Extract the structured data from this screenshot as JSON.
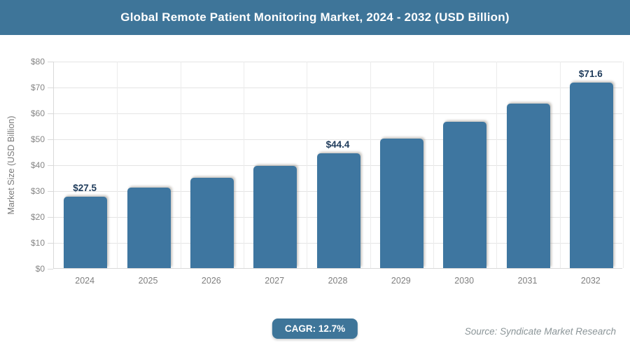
{
  "header": {
    "title": "Global Remote Patient Monitoring Market, 2024 - 2032 (USD Billion)"
  },
  "chart_data": {
    "type": "bar",
    "title": "Global Remote Patient Monitoring Market, 2024 - 2032 (USD Billion)",
    "categories": [
      "2024",
      "2025",
      "2026",
      "2027",
      "2028",
      "2029",
      "2030",
      "2031",
      "2032"
    ],
    "values": [
      27.5,
      31.0,
      34.9,
      39.4,
      44.4,
      50.0,
      56.4,
      63.5,
      71.6
    ],
    "bar_labels": [
      "$27.5",
      "",
      "",
      "",
      "$44.4",
      "",
      "",
      "",
      "$71.6"
    ],
    "xlabel": "",
    "ylabel": "Market Size (USD Billion)",
    "ylim": [
      0,
      80
    ],
    "ytick_step": 10,
    "ytick_labels": [
      "$0",
      "$10",
      "$20",
      "$30",
      "$40",
      "$50",
      "$60",
      "$70",
      "$80"
    ],
    "grid": true,
    "legend_position": "none",
    "colors": {
      "bar": "#3e76a0",
      "header_bg": "#3e7599",
      "value_label": "#1d3a5a",
      "axis_text": "#7f7f7f",
      "gridline": "#e4e4e4",
      "source_text": "#8b9598"
    }
  },
  "footer": {
    "cagr_label": "CAGR: 12.7%",
    "source": "Source: Syndicate Market Research"
  }
}
